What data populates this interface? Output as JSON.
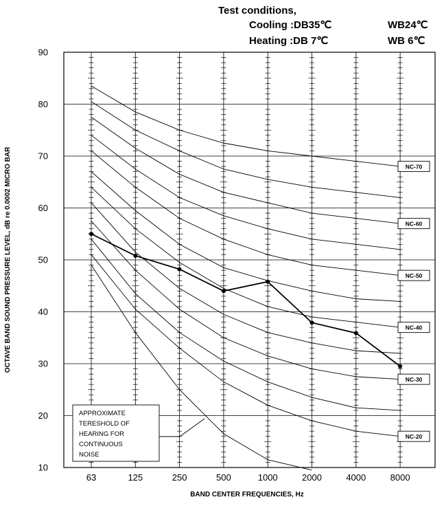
{
  "test_conditions": {
    "title": "Test conditions,",
    "cooling_label": "Cooling :DB35℃",
    "cooling_wb": "WB24℃",
    "heating_label": "Heating :DB 7℃",
    "heating_wb": "WB 6℃"
  },
  "chart_data": {
    "type": "line",
    "xlabel": "BAND CENTER FREQUENCIES, Hz",
    "ylabel": "OCTAVE BAND SOUND PRESSURE LEVEL, dB re 0.0002 MICRO BAR",
    "categories": [
      "63",
      "125",
      "250",
      "500",
      "1000",
      "2000",
      "4000",
      "8000"
    ],
    "ylim": [
      10,
      90
    ],
    "yticks": [
      "10",
      "20",
      "30",
      "40",
      "50",
      "60",
      "70",
      "80",
      "90"
    ],
    "grid": true,
    "measured": {
      "values": [
        55,
        50.8,
        48.2,
        44,
        45.8,
        37.9,
        35.9,
        29.5
      ],
      "color": "#000000"
    },
    "nc_curves": [
      {
        "label": "",
        "values": [
          49,
          36,
          25,
          16.5,
          11.5,
          9.5,
          null,
          null
        ]
      },
      {
        "label": "NC-20",
        "values": [
          51,
          40.5,
          33,
          26.5,
          22,
          19,
          17,
          16
        ]
      },
      {
        "label": "",
        "values": [
          54,
          43.5,
          36,
          30.5,
          26.5,
          23.5,
          21.5,
          21
        ]
      },
      {
        "label": "NC-30",
        "values": [
          57.5,
          48,
          40.5,
          35,
          31.5,
          29,
          27.5,
          27
        ]
      },
      {
        "label": "",
        "values": [
          61,
          51.5,
          44.5,
          39.5,
          36,
          34,
          32.5,
          32
        ]
      },
      {
        "label": "NC-40",
        "values": [
          64,
          56,
          49.5,
          44.5,
          41,
          39,
          38,
          37
        ]
      },
      {
        "label": "",
        "values": [
          67,
          59.5,
          53,
          48.5,
          46,
          44,
          42.5,
          42
        ]
      },
      {
        "label": "NC-50",
        "values": [
          71,
          64,
          58,
          54,
          51,
          49,
          48,
          47
        ]
      },
      {
        "label": "",
        "values": [
          74,
          67.5,
          62,
          58.5,
          56,
          54,
          53,
          52
        ]
      },
      {
        "label": "NC-60",
        "values": [
          77.5,
          71.5,
          66.5,
          63,
          61,
          59,
          58,
          57
        ]
      },
      {
        "label": "",
        "values": [
          80.5,
          75,
          71,
          67.5,
          65.5,
          64,
          63,
          62
        ]
      },
      {
        "label": "NC-70",
        "values": [
          83.5,
          78.5,
          75,
          72.5,
          71,
          70,
          69,
          68
        ]
      }
    ],
    "annotation": [
      "APPROXIMATE",
      "TERESHOLD OF",
      "HEARING FOR",
      "CONTINUOUS",
      "NOISE"
    ]
  }
}
